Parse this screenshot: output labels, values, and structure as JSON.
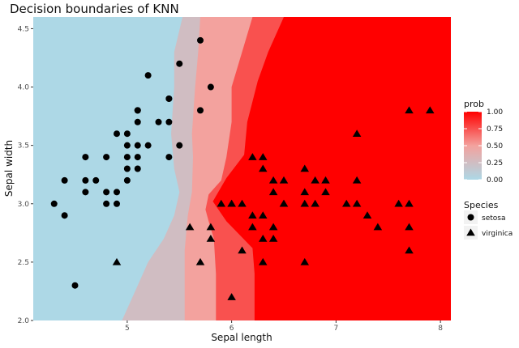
{
  "chart_data": {
    "type": "scatter",
    "title": "Decision boundaries of KNN",
    "xlabel": "Sepal length",
    "ylabel": "Sepal width",
    "xlim": [
      4.1,
      8.1
    ],
    "ylim": [
      2.0,
      4.6
    ],
    "x_ticks": [
      5,
      6,
      7,
      8
    ],
    "x_tick_labels": [
      "5",
      "6",
      "7",
      "8"
    ],
    "y_ticks": [
      2.0,
      2.5,
      3.0,
      3.5,
      4.0,
      4.5
    ],
    "y_tick_labels": [
      "2.0",
      "2.5",
      "3.0",
      "3.5",
      "4.0",
      "4.5"
    ],
    "grid": true,
    "colors": {
      "low": "#add8e6",
      "high": "#ff0000",
      "point": "#000000"
    },
    "color_scale": {
      "name": "prob",
      "ticks": [
        0.0,
        0.25,
        0.5,
        0.75,
        1.0
      ],
      "tick_labels": [
        "0.00",
        "0.25",
        "0.50",
        "0.75",
        "1.00"
      ]
    },
    "background_regions": [
      {
        "prob": 0.0,
        "boundary": [
          [
            5.53,
            4.6
          ],
          [
            5.45,
            4.3
          ],
          [
            5.45,
            4.0
          ],
          [
            5.42,
            3.6
          ],
          [
            5.45,
            3.3
          ],
          [
            5.5,
            3.1
          ],
          [
            5.45,
            2.9
          ],
          [
            5.35,
            2.7
          ],
          [
            5.2,
            2.5
          ],
          [
            5.1,
            2.3
          ],
          [
            4.95,
            2.0
          ]
        ]
      },
      {
        "prob": 0.25,
        "boundary": [
          [
            5.7,
            4.6
          ],
          [
            5.68,
            4.3
          ],
          [
            5.65,
            4.0
          ],
          [
            5.62,
            3.6
          ],
          [
            5.63,
            3.4
          ],
          [
            5.62,
            3.1
          ],
          [
            5.58,
            2.9
          ],
          [
            5.55,
            2.6
          ],
          [
            5.55,
            2.3
          ],
          [
            5.55,
            2.0
          ]
        ]
      },
      {
        "prob": 0.5,
        "boundary": [
          [
            6.2,
            4.6
          ],
          [
            6.1,
            4.3
          ],
          [
            6.0,
            4.0
          ],
          [
            6.0,
            3.7
          ],
          [
            5.95,
            3.4
          ],
          [
            5.9,
            3.2
          ],
          [
            5.78,
            3.08
          ],
          [
            5.75,
            2.95
          ],
          [
            5.78,
            2.85
          ],
          [
            5.83,
            2.7
          ],
          [
            5.85,
            2.4
          ],
          [
            5.85,
            2.0
          ]
        ]
      },
      {
        "prob": 0.75,
        "boundary": [
          [
            6.5,
            4.6
          ],
          [
            6.35,
            4.3
          ],
          [
            6.25,
            4.05
          ],
          [
            6.15,
            3.7
          ],
          [
            6.12,
            3.42
          ],
          [
            5.95,
            3.22
          ],
          [
            5.82,
            3.02
          ],
          [
            5.95,
            2.85
          ],
          [
            6.2,
            2.62
          ],
          [
            6.22,
            2.4
          ],
          [
            6.22,
            2.0
          ]
        ]
      }
    ],
    "series": [
      {
        "name": "setosa",
        "marker": "circle",
        "x": [
          4.5,
          4.3,
          4.4,
          4.4,
          4.6,
          4.6,
          4.7,
          4.8,
          4.8,
          4.8,
          4.9,
          4.9,
          5.0,
          5.0,
          5.0,
          5.0,
          5.0,
          5.1,
          5.1,
          5.1,
          5.1,
          5.1,
          5.1,
          5.2,
          5.3,
          5.4,
          5.4,
          5.4,
          5.4,
          5.5,
          5.5,
          5.7,
          5.7,
          5.8,
          5.2,
          4.6,
          4.9
        ],
        "y": [
          2.3,
          3.0,
          2.9,
          3.2,
          3.1,
          3.2,
          3.2,
          3.0,
          3.1,
          3.4,
          3.0,
          3.6,
          3.2,
          3.3,
          3.4,
          3.5,
          3.6,
          3.3,
          3.4,
          3.5,
          3.7,
          3.8,
          3.8,
          4.1,
          3.7,
          3.4,
          3.7,
          3.9,
          3.9,
          3.5,
          4.2,
          3.8,
          4.4,
          4.0,
          3.5,
          3.4,
          3.1
        ]
      },
      {
        "name": "virginica",
        "marker": "triangle",
        "x": [
          4.9,
          5.6,
          5.7,
          5.8,
          5.8,
          5.9,
          6.0,
          6.0,
          6.0,
          6.1,
          6.1,
          6.2,
          6.2,
          6.3,
          6.3,
          6.3,
          6.3,
          6.3,
          6.4,
          6.4,
          6.4,
          6.4,
          6.5,
          6.5,
          6.5,
          6.7,
          6.7,
          6.7,
          6.7,
          6.8,
          6.8,
          6.9,
          6.9,
          7.1,
          7.2,
          7.2,
          7.2,
          7.3,
          7.4,
          7.6,
          7.7,
          7.7,
          7.7,
          7.9,
          7.7,
          6.2
        ],
        "y": [
          2.5,
          2.8,
          2.5,
          2.7,
          2.8,
          3.0,
          2.2,
          3.0,
          3.0,
          2.6,
          3.0,
          2.8,
          3.4,
          2.5,
          2.7,
          2.9,
          3.3,
          3.4,
          2.8,
          3.1,
          3.2,
          2.7,
          3.0,
          3.0,
          3.2,
          2.5,
          3.0,
          3.1,
          3.3,
          3.0,
          3.2,
          3.1,
          3.2,
          3.0,
          3.0,
          3.6,
          3.2,
          2.9,
          2.8,
          3.0,
          2.6,
          2.8,
          3.0,
          3.8,
          3.8,
          2.9
        ]
      }
    ],
    "legend": {
      "species_title": "Species",
      "position": "right"
    }
  }
}
